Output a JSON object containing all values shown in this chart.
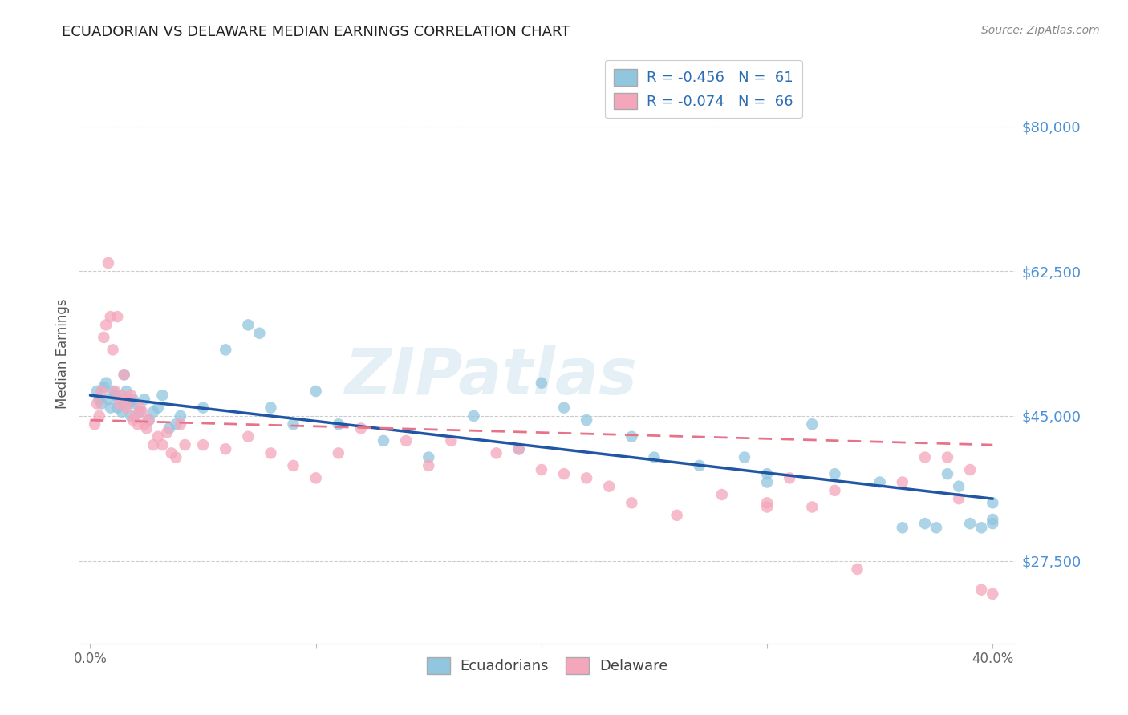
{
  "title": "ECUADORIAN VS DELAWARE MEDIAN EARNINGS CORRELATION CHART",
  "source": "Source: ZipAtlas.com",
  "ylabel": "Median Earnings",
  "xlim": [
    -0.005,
    0.41
  ],
  "ylim": [
    17500,
    87500
  ],
  "yticks": [
    27500,
    45000,
    62500,
    80000
  ],
  "ytick_labels": [
    "$27,500",
    "$45,000",
    "$62,500",
    "$80,000"
  ],
  "xticks": [
    0.0,
    0.1,
    0.2,
    0.3,
    0.4
  ],
  "xtick_labels": [
    "0.0%",
    "",
    "",
    "",
    "40.0%"
  ],
  "legend_blue_R": "R = -0.456",
  "legend_blue_N": "N =  61",
  "legend_pink_R": "R = -0.074",
  "legend_pink_N": "N =  66",
  "blue_color": "#92c5de",
  "pink_color": "#f4a6bb",
  "blue_line_color": "#2156a5",
  "pink_line_color": "#e8728a",
  "watermark": "ZIPatlas",
  "background_color": "#ffffff",
  "blue_line_x0": 0.0,
  "blue_line_y0": 47500,
  "blue_line_x1": 0.4,
  "blue_line_y1": 35000,
  "pink_line_x0": 0.0,
  "pink_line_y0": 44500,
  "pink_line_x1": 0.4,
  "pink_line_y1": 41500,
  "blue_scatter_x": [
    0.003,
    0.004,
    0.005,
    0.006,
    0.007,
    0.008,
    0.009,
    0.01,
    0.011,
    0.012,
    0.013,
    0.014,
    0.015,
    0.016,
    0.017,
    0.018,
    0.019,
    0.02,
    0.022,
    0.024,
    0.026,
    0.028,
    0.03,
    0.032,
    0.035,
    0.038,
    0.04,
    0.05,
    0.06,
    0.07,
    0.075,
    0.08,
    0.09,
    0.1,
    0.11,
    0.13,
    0.15,
    0.17,
    0.19,
    0.2,
    0.21,
    0.22,
    0.24,
    0.25,
    0.27,
    0.29,
    0.3,
    0.3,
    0.32,
    0.33,
    0.35,
    0.36,
    0.37,
    0.375,
    0.38,
    0.385,
    0.39,
    0.395,
    0.4,
    0.4,
    0.4
  ],
  "blue_scatter_y": [
    48000,
    47000,
    46500,
    48500,
    49000,
    47000,
    46000,
    48000,
    47500,
    46000,
    47000,
    45500,
    50000,
    48000,
    46500,
    45000,
    47000,
    46500,
    45500,
    47000,
    44500,
    45500,
    46000,
    47500,
    43500,
    44000,
    45000,
    46000,
    53000,
    56000,
    55000,
    46000,
    44000,
    48000,
    44000,
    42000,
    40000,
    45000,
    41000,
    49000,
    46000,
    44500,
    42500,
    40000,
    39000,
    40000,
    38000,
    37000,
    44000,
    38000,
    37000,
    31500,
    32000,
    31500,
    38000,
    36500,
    32000,
    31500,
    32000,
    32500,
    34500
  ],
  "pink_scatter_x": [
    0.002,
    0.003,
    0.004,
    0.005,
    0.006,
    0.007,
    0.008,
    0.009,
    0.01,
    0.011,
    0.012,
    0.013,
    0.014,
    0.015,
    0.016,
    0.017,
    0.018,
    0.019,
    0.02,
    0.021,
    0.022,
    0.023,
    0.024,
    0.025,
    0.026,
    0.028,
    0.03,
    0.032,
    0.034,
    0.036,
    0.038,
    0.04,
    0.042,
    0.05,
    0.06,
    0.07,
    0.08,
    0.09,
    0.1,
    0.11,
    0.12,
    0.14,
    0.15,
    0.16,
    0.18,
    0.19,
    0.2,
    0.21,
    0.22,
    0.23,
    0.24,
    0.26,
    0.28,
    0.3,
    0.3,
    0.31,
    0.32,
    0.33,
    0.34,
    0.36,
    0.37,
    0.38,
    0.385,
    0.39,
    0.395,
    0.4
  ],
  "pink_scatter_y": [
    44000,
    46500,
    45000,
    48000,
    54500,
    56000,
    63500,
    57000,
    53000,
    48000,
    57000,
    46500,
    47500,
    50000,
    46000,
    47000,
    47500,
    44500,
    45000,
    44000,
    46000,
    45500,
    44000,
    43500,
    44500,
    41500,
    42500,
    41500,
    43000,
    40500,
    40000,
    44000,
    41500,
    41500,
    41000,
    42500,
    40500,
    39000,
    37500,
    40500,
    43500,
    42000,
    39000,
    42000,
    40500,
    41000,
    38500,
    38000,
    37500,
    36500,
    34500,
    33000,
    35500,
    34500,
    34000,
    37500,
    34000,
    36000,
    26500,
    37000,
    40000,
    40000,
    35000,
    38500,
    24000,
    23500
  ]
}
